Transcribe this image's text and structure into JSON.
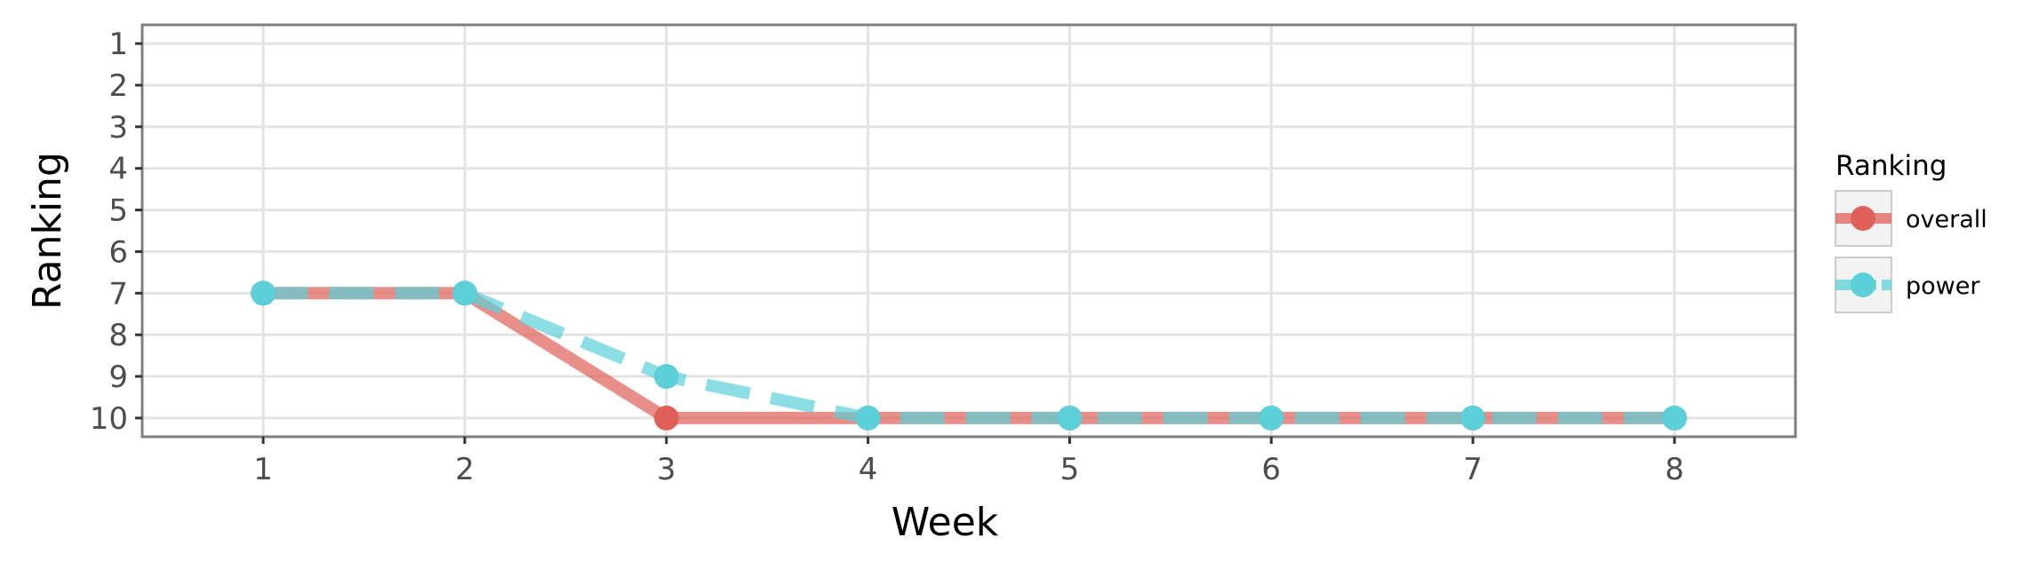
{
  "chart_data": {
    "type": "line",
    "xlabel": "Week",
    "ylabel": "Ranking",
    "x": [
      1,
      2,
      3,
      4,
      5,
      6,
      7,
      8
    ],
    "x_ticks": [
      "1",
      "2",
      "3",
      "4",
      "5",
      "6",
      "7",
      "8"
    ],
    "y_ticks": [
      "1",
      "2",
      "3",
      "4",
      "5",
      "6",
      "7",
      "8",
      "9",
      "10"
    ],
    "y_reversed": true,
    "xlim": [
      0.4,
      8.6
    ],
    "ylim": [
      0.55,
      10.45
    ],
    "grid": true,
    "legend": {
      "title": "Ranking",
      "position": "right"
    },
    "series": [
      {
        "name": "overall",
        "values": [
          7,
          7,
          10,
          10,
          10,
          10,
          10,
          10
        ],
        "color": "#df6059",
        "line_style": "solid"
      },
      {
        "name": "power",
        "values": [
          7,
          7,
          9,
          10,
          10,
          10,
          10,
          10
        ],
        "color": "#5bd0d9",
        "line_style": "dashed"
      }
    ]
  }
}
